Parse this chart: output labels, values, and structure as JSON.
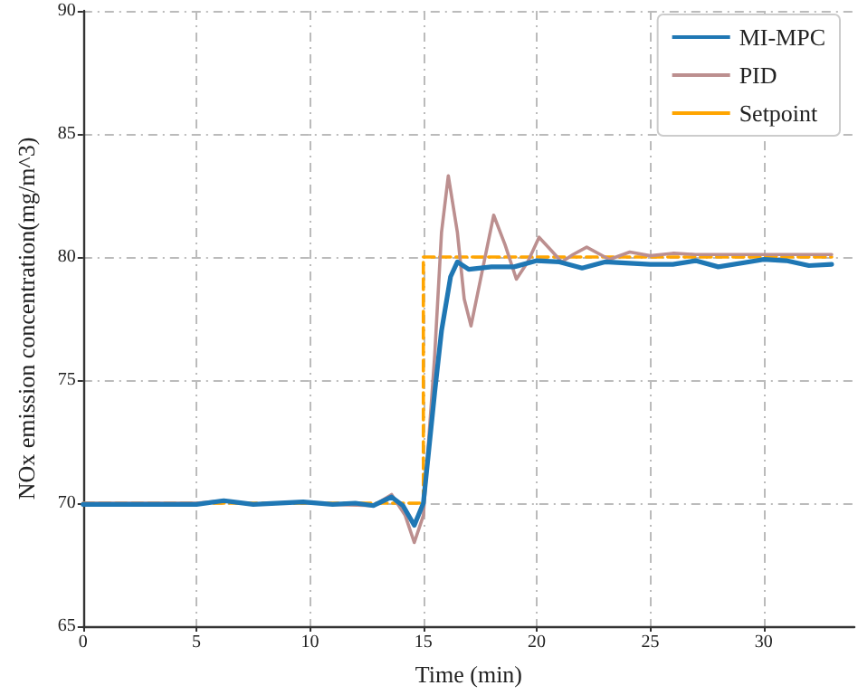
{
  "chart_data": {
    "type": "line",
    "xlabel": "Time (min)",
    "ylabel": "NOx emission concentration(mg/m^3)",
    "xlim": [
      0,
      34
    ],
    "xticks": [
      0,
      5,
      10,
      15,
      20,
      25,
      30
    ],
    "ylim": [
      65,
      90
    ],
    "yticks": [
      65,
      70,
      75,
      80,
      85,
      90
    ],
    "grid": true,
    "legend": "top right",
    "marker": "none",
    "series": [
      {
        "name": "MI-MPC",
        "color": "#1f77b4",
        "line_style": "solid",
        "x": [
          0,
          5,
          6.2,
          7.5,
          9.7,
          11,
          12,
          12.8,
          13.6,
          14.1,
          14.6,
          15.0,
          15.5,
          15.8,
          16.2,
          16.5,
          17,
          18,
          19,
          20,
          21,
          22,
          23,
          25,
          26,
          27,
          28,
          30,
          31,
          32,
          33
        ],
        "values": [
          69.95,
          69.95,
          70.1,
          69.95,
          70.05,
          69.95,
          70.0,
          69.9,
          70.25,
          69.9,
          69.1,
          70.0,
          74.5,
          77,
          79.2,
          79.8,
          79.5,
          79.6,
          79.6,
          79.85,
          79.8,
          79.55,
          79.8,
          79.7,
          79.7,
          79.85,
          79.6,
          79.9,
          79.85,
          79.65,
          79.7
        ]
      },
      {
        "name": "PID",
        "color": "#bc8f8f",
        "line_style": "solid",
        "x": [
          0,
          5,
          6.2,
          7.5,
          9.7,
          11,
          12.8,
          13.6,
          14.2,
          14.6,
          15.0,
          15.5,
          15.8,
          16.1,
          16.5,
          16.8,
          17.1,
          17.5,
          18.1,
          18.6,
          19.1,
          19.6,
          20.1,
          20.6,
          21.1,
          21.6,
          22.2,
          22.8,
          23.2,
          24.1,
          25,
          26,
          27,
          28,
          30,
          33
        ],
        "values": [
          70,
          70,
          70.1,
          69.95,
          70.05,
          69.95,
          69.9,
          70.35,
          69.5,
          68.4,
          69.5,
          76,
          81,
          83.3,
          81,
          78.3,
          77.2,
          79,
          81.7,
          80.5,
          79.1,
          79.8,
          80.8,
          80.3,
          79.8,
          80.1,
          80.4,
          80.1,
          79.9,
          80.2,
          80.05,
          80.15,
          80.1,
          80.1,
          80.1,
          80.1
        ]
      },
      {
        "name": "Setpoint",
        "color": "#ffa500",
        "line_style": "dashed",
        "x": [
          0,
          15,
          15,
          33
        ],
        "values": [
          70,
          70,
          80,
          80
        ]
      }
    ]
  }
}
